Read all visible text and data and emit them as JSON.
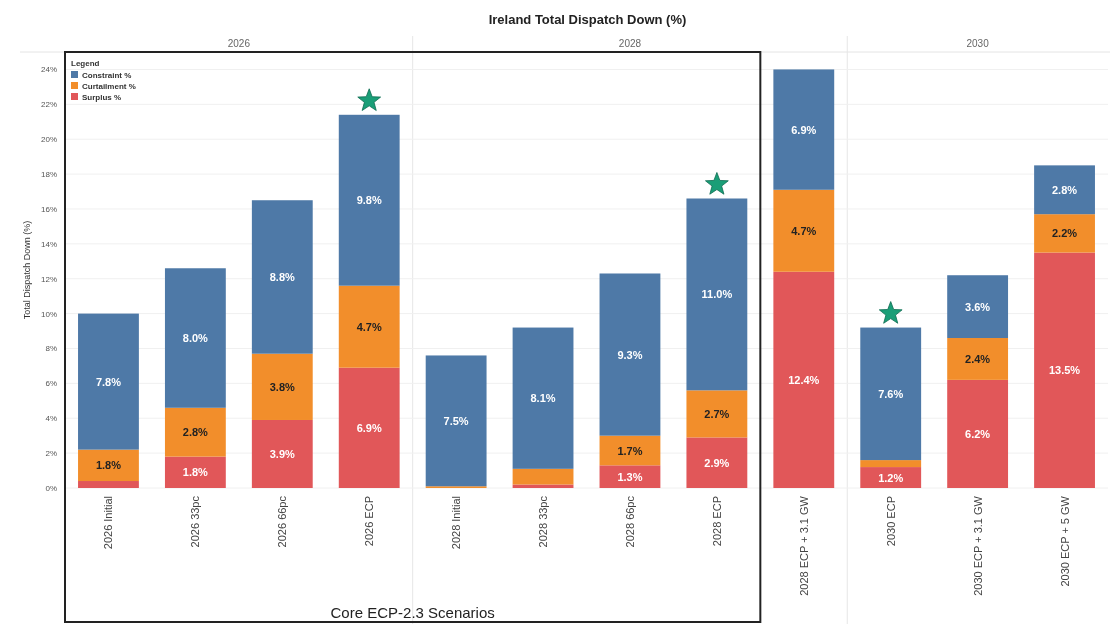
{
  "chart_data": {
    "type": "bar",
    "stacked": true,
    "title": "Ireland Total Dispatch Down (%)",
    "ylabel": "Total Dispatch Down (%)",
    "legend_title": "Legend",
    "legend": "top left",
    "grid": "y",
    "categories": [
      "2026 Initial",
      "2026 33pc",
      "2026 66pc",
      "2026 ECP",
      "2028 Initial",
      "2028 33pc",
      "2028 66pc",
      "2028 ECP",
      "2028 ECP + 3.1 GW",
      "2030 ECP",
      "2030 ECP + 3.1 GW",
      "2030 ECP + 5 GW"
    ],
    "series": [
      {
        "name": "Surplus %",
        "color": "#e15759",
        "values": [
          0.4,
          1.8,
          3.9,
          6.9,
          0,
          0.2,
          1.3,
          2.9,
          12.4,
          1.2,
          6.2,
          13.5
        ],
        "value_labels": [
          null,
          "1.8%",
          "3.9%",
          "6.9%",
          null,
          null,
          "1.3%",
          "2.9%",
          "12.4%",
          "1.2%",
          "6.2%",
          "13.5%"
        ]
      },
      {
        "name": "Curtailment %",
        "color": "#f28e2b",
        "values": [
          1.8,
          2.8,
          3.8,
          4.7,
          0.1,
          0.9,
          1.7,
          2.7,
          4.7,
          0.4,
          2.4,
          2.2
        ],
        "value_labels": [
          "1.8%",
          "2.8%",
          "3.8%",
          "4.7%",
          null,
          null,
          "1.7%",
          "2.7%",
          "4.7%",
          null,
          "2.4%",
          "2.2%"
        ]
      },
      {
        "name": "Constraint %",
        "color": "#4e79a7",
        "values": [
          7.8,
          8.0,
          8.8,
          9.8,
          7.5,
          8.1,
          9.3,
          11.0,
          6.9,
          7.6,
          3.6,
          2.8
        ],
        "value_labels": [
          "7.8%",
          "8.0%",
          "8.8%",
          "9.8%",
          "7.5%",
          "8.1%",
          "9.3%",
          "11.0%",
          "6.9%",
          "7.6%",
          "3.6%",
          "2.8%"
        ]
      }
    ],
    "ylim": [
      0,
      25
    ],
    "yticks": [
      {
        "value": 0,
        "label": "0%"
      },
      {
        "value": 2,
        "label": "2%"
      },
      {
        "value": 4,
        "label": "4%"
      },
      {
        "value": 6,
        "label": "6%"
      },
      {
        "value": 8,
        "label": "8%"
      },
      {
        "value": 10,
        "label": "10%"
      },
      {
        "value": 12,
        "label": "12%"
      },
      {
        "value": 14,
        "label": "14%"
      },
      {
        "value": 16,
        "label": "16%"
      },
      {
        "value": 18,
        "label": "18%"
      },
      {
        "value": 20,
        "label": "20%"
      },
      {
        "value": 22,
        "label": "22%"
      },
      {
        "value": 24,
        "label": "24%"
      }
    ],
    "annotations": [
      "2026",
      "2028",
      "2030",
      "Core ECP-2.3 Scenarios"
    ]
  }
}
